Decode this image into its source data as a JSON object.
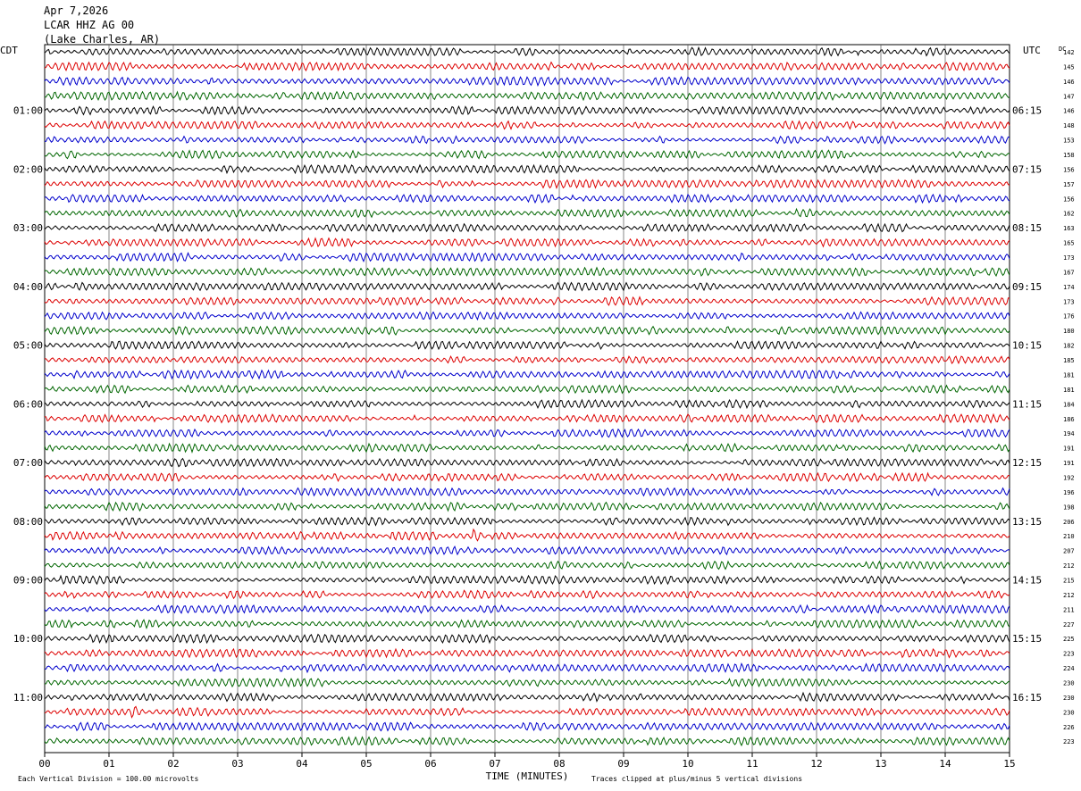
{
  "header": {
    "date": "Apr 7,2026",
    "station": "LCAR HHZ AG 00",
    "location": "(Lake Charles, AR)"
  },
  "left_timezone": "CDT",
  "right_timezone": "UTC",
  "dc_header": "DC",
  "footer": {
    "scale_note": "Each Vertical Division =  100.00 microvolts",
    "clip_note": "Traces clipped at plus/minus 5 vertical divisions"
  },
  "colors": {
    "trace_cycle": [
      "#000000",
      "#dd0000",
      "#0000cc",
      "#006600"
    ],
    "grid": "#000000",
    "background": "#ffffff"
  },
  "chart_data": {
    "type": "line",
    "subtype": "helicorder",
    "xlabel": "TIME (MINUTES)",
    "xlim": [
      0,
      15
    ],
    "x_tick_labels": [
      "00",
      "01",
      "02",
      "03",
      "04",
      "05",
      "06",
      "07",
      "08",
      "09",
      "10",
      "11",
      "12",
      "13",
      "14",
      "15"
    ],
    "trace_count": 48,
    "left_hour_labels": [
      "01:00",
      "02:00",
      "03:00",
      "04:00",
      "05:00",
      "06:00",
      "07:00",
      "08:00",
      "09:00",
      "10:00",
      "11:00"
    ],
    "right_hour_labels": [
      "06:15",
      "07:15",
      "08:15",
      "09:15",
      "10:15",
      "11:15",
      "12:15",
      "13:15",
      "14:15",
      "15:15",
      "16:15"
    ],
    "dc_offsets": [
      142,
      145,
      146,
      147,
      146,
      148,
      153,
      158,
      156,
      157,
      156,
      162,
      163,
      165,
      173,
      167,
      174,
      173,
      176,
      180,
      182,
      185,
      181,
      181,
      184,
      186,
      194,
      191,
      191,
      192,
      196,
      198,
      206,
      210,
      207,
      212,
      215,
      212,
      211,
      227,
      225,
      223,
      224,
      230,
      230,
      230,
      226,
      223
    ],
    "events": [
      {
        "trace": 33,
        "minute": 6.7,
        "label": ""
      },
      {
        "trace": 45,
        "minute": 1.4,
        "label": ""
      }
    ]
  }
}
